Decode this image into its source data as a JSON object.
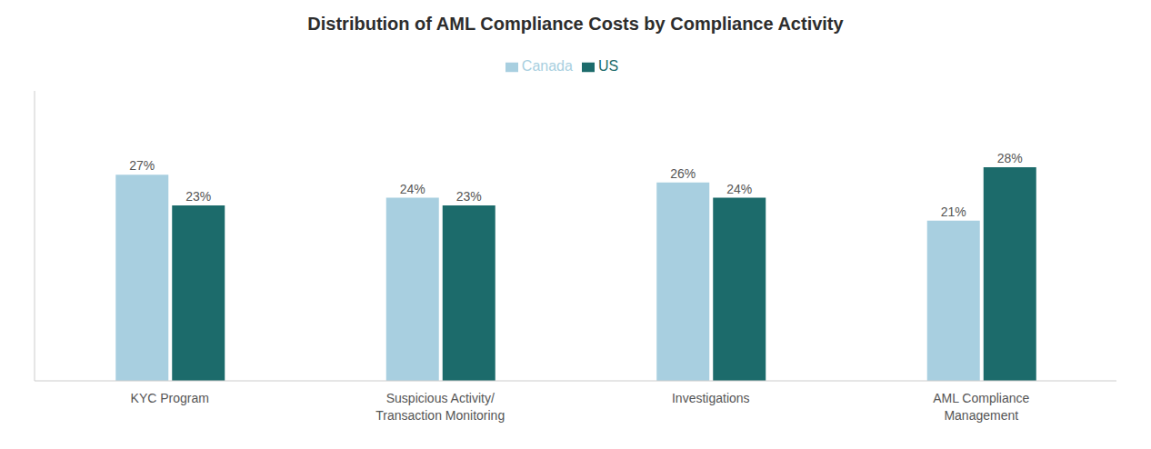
{
  "chart_data": {
    "type": "bar",
    "title": "Distribution of AML Compliance Costs by Compliance Activity",
    "categories": [
      "KYC Program",
      "Suspicious Activity/\nTransaction Monitoring",
      "Investigations",
      "AML Compliance\nManagement"
    ],
    "series": [
      {
        "name": "Canada",
        "color": "#a8cfe0",
        "values": [
          27,
          24,
          26,
          21
        ],
        "value_labels": [
          "27%",
          "24%",
          "26%",
          "21%"
        ]
      },
      {
        "name": "US",
        "color": "#1c6b6b",
        "values": [
          23,
          23,
          24,
          28
        ],
        "value_labels": [
          "23%",
          "23%",
          "24%",
          "28%"
        ]
      }
    ],
    "ylim": [
      0,
      38
    ],
    "yticks": [],
    "tick_labels": "x",
    "data_labels": true,
    "legend": "top",
    "grid": false
  }
}
